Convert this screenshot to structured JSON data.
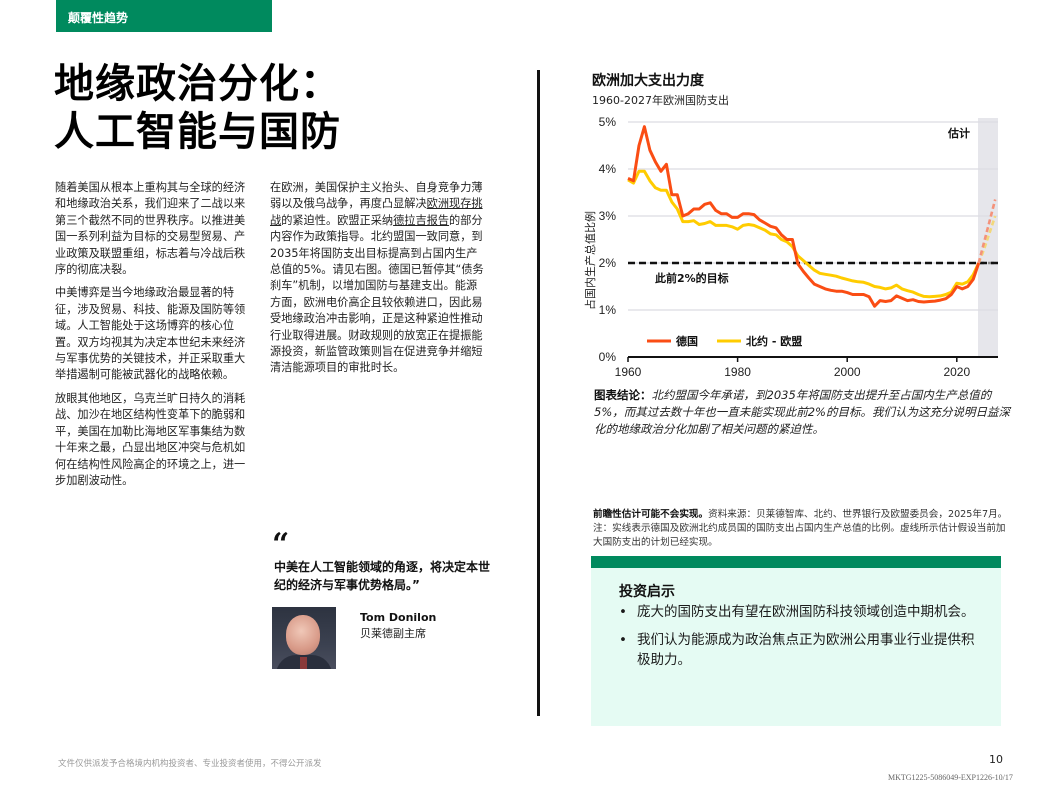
{
  "section_tag": "颠覆性趋势",
  "title": {
    "line1": "地缘政治分化：",
    "line2": "人工智能与国防"
  },
  "body": {
    "col1": [
      "随着美国从根本上重构其与全球的经济和地缘政治关系，我们迎来了二战以来第三个截然不同的世界秩序。以推进美国一系列利益为目标的交易型贸易、产业政策及联盟重组，标志着与冷战后秩序的彻底决裂。",
      "中美博弈是当今地缘政治最显著的特征，涉及贸易、科技、能源及国防等领域。人工智能处于这场博弈的核心位置。双方均视其为决定本世纪未来经济与军事优势的关键技术，并正采取重大举措遏制可能被武器化的战略依赖。",
      "放眼其他地区，乌克兰旷日持久的消耗战、加沙在地区结构性变革下的脆弱和平，美国在加勒比海地区军事集结为数十年来之最，凸显出地区冲突与危机如何在结构性风险高企的环境之上，进一步加剧波动性。"
    ],
    "col2": {
      "part1": "在欧洲，美国保护主义抬头、自身竞争力薄弱以及俄乌战争，再度凸显解决",
      "link1": "欧洲现存挑战",
      "part2": "的紧迫性。欧盟正采纳",
      "link2": "德拉吉报告",
      "part3": "的部分内容作为政策指导。北约盟国一致同意，到2035年将国防支出目标提高到占国内生产总值的5%。请见右图。德国已暂停其“债务刹车”机制，以增加国防与基建支出。能源方面，欧洲电价高企且较依赖进口，因此易受地缘政治冲击影响，正是这种紧迫性推动行业取得进展。财政规则的放宽正在提振能源投资，新监管政策则旨在促进竞争并缩短清洁能源项目的审批时长。"
    }
  },
  "quote": {
    "mark": "“",
    "text": "中美在人工智能领域的角逐，将决定本世纪的经济与军事优势格局。”",
    "speaker_name": "Tom Donilon",
    "speaker_role": "贝莱德副主席"
  },
  "chart": {
    "title": "欧洲加大支出力度",
    "subtitle": "1960-2027年欧洲国防支出",
    "estimate_label": "估计",
    "target_label": "此前2%的目标",
    "yaxis_label": "占国内生产总值比例",
    "legend": [
      {
        "label": "德国",
        "color": "#fa4d14"
      },
      {
        "label": "北约 - 欧盟",
        "color": "#ffcc00"
      }
    ],
    "conclusion_label": "图表结论：",
    "conclusion_text": "北约盟国今年承诺，到2035年将国防支出提升至占国内生产总值的5%，而其过去数十年也一直未能实现此前2%的目标。我们认为这充分说明日益深化的地缘政治分化加剧了相关问题的紧迫性。"
  },
  "chart_data": {
    "type": "line",
    "title": "欧洲加大支出力度",
    "subtitle": "1960-2027年欧洲国防支出",
    "xlabel": "",
    "ylabel": "占国内生产总值比例",
    "x_ticks": [
      "1960",
      "1980",
      "2000",
      "2020"
    ],
    "y_ticks": [
      "0%",
      "1%",
      "2%",
      "3%",
      "4%",
      "5%"
    ],
    "ylim": [
      0,
      5
    ],
    "xlim": [
      1960,
      2027
    ],
    "grid": true,
    "legend_position": "bottom-left inside",
    "reference_line": {
      "value": 2,
      "label": "此前2%的目标",
      "style": "dashed"
    },
    "estimate_region": {
      "from": 2024,
      "to": 2027,
      "label": "估计"
    },
    "series": [
      {
        "name": "德国",
        "color": "#fa4d14",
        "x": [
          1960,
          1961,
          1962,
          1963,
          1964,
          1965,
          1966,
          1967,
          1968,
          1969,
          1970,
          1971,
          1972,
          1973,
          1974,
          1975,
          1976,
          1977,
          1978,
          1979,
          1980,
          1981,
          1982,
          1983,
          1984,
          1985,
          1986,
          1987,
          1988,
          1989,
          1990,
          1991,
          1992,
          1993,
          1994,
          1995,
          1996,
          1997,
          1998,
          1999,
          2000,
          2001,
          2002,
          2003,
          2004,
          2005,
          2006,
          2007,
          2008,
          2009,
          2010,
          2011,
          2012,
          2013,
          2014,
          2015,
          2016,
          2017,
          2018,
          2019,
          2020,
          2021,
          2022,
          2023,
          2024
        ],
        "values": [
          3.8,
          3.75,
          4.5,
          4.9,
          4.4,
          4.15,
          3.95,
          4.1,
          3.45,
          3.45,
          3.0,
          3.05,
          3.15,
          3.15,
          3.25,
          3.28,
          3.12,
          3.05,
          3.05,
          2.97,
          2.97,
          3.05,
          3.05,
          3.03,
          2.92,
          2.85,
          2.78,
          2.75,
          2.6,
          2.5,
          2.5,
          1.98,
          1.82,
          1.68,
          1.55,
          1.5,
          1.45,
          1.42,
          1.4,
          1.4,
          1.37,
          1.33,
          1.33,
          1.33,
          1.28,
          1.08,
          1.2,
          1.18,
          1.2,
          1.3,
          1.25,
          1.2,
          1.22,
          1.18,
          1.17,
          1.18,
          1.19,
          1.21,
          1.24,
          1.33,
          1.5,
          1.45,
          1.5,
          1.65,
          2.0
        ],
        "estimate": {
          "x": [
            2024,
            2025,
            2026,
            2027
          ],
          "values": [
            2.0,
            2.45,
            2.9,
            3.35
          ]
        }
      },
      {
        "name": "北约 - 欧盟",
        "color": "#ffcc00",
        "x": [
          1960,
          1961,
          1962,
          1963,
          1964,
          1965,
          1966,
          1967,
          1968,
          1969,
          1970,
          1971,
          1972,
          1973,
          1974,
          1975,
          1976,
          1977,
          1978,
          1979,
          1980,
          1981,
          1982,
          1983,
          1984,
          1985,
          1986,
          1987,
          1988,
          1989,
          1990,
          1991,
          1992,
          1993,
          1994,
          1995,
          1996,
          1997,
          1998,
          1999,
          2000,
          2001,
          2002,
          2003,
          2004,
          2005,
          2006,
          2007,
          2008,
          2009,
          2010,
          2011,
          2012,
          2013,
          2014,
          2015,
          2016,
          2017,
          2018,
          2019,
          2020,
          2021,
          2022,
          2023,
          2024
        ],
        "values": [
          3.77,
          3.7,
          3.95,
          3.95,
          3.75,
          3.6,
          3.55,
          3.55,
          3.3,
          3.15,
          2.88,
          2.88,
          2.9,
          2.82,
          2.84,
          2.88,
          2.8,
          2.8,
          2.8,
          2.77,
          2.72,
          2.8,
          2.82,
          2.8,
          2.75,
          2.7,
          2.62,
          2.6,
          2.5,
          2.45,
          2.35,
          2.15,
          2.05,
          1.95,
          1.85,
          1.78,
          1.76,
          1.74,
          1.72,
          1.68,
          1.65,
          1.62,
          1.6,
          1.59,
          1.55,
          1.5,
          1.48,
          1.45,
          1.47,
          1.53,
          1.45,
          1.41,
          1.38,
          1.33,
          1.29,
          1.28,
          1.29,
          1.3,
          1.33,
          1.38,
          1.57,
          1.55,
          1.6,
          1.75,
          2.0
        ],
        "estimate": {
          "x": [
            2024,
            2025,
            2026,
            2027
          ],
          "values": [
            2.0,
            2.3,
            2.65,
            3.0
          ]
        }
      }
    ]
  },
  "source_note": {
    "bold": "前瞻性估计可能不会实现。",
    "text": "资料来源：贝莱德智库、北约、世界银行及欧盟委员会，2025年7月。注：实线表示德国及欧洲北约成员国的国防支出占国内生产总值的比例。虚线所示估计假设当前加大国防支出的计划已经实现。"
  },
  "investment": {
    "title": "投资启示",
    "bullet": "•",
    "items": [
      "庞大的国防支出有望在欧洲国防科技领域创造中期机会。",
      "我们认为能源成为政治焦点正为欧洲公用事业行业提供积极助力。"
    ]
  },
  "footer": {
    "disclaimer": "文件仅供派发予合格境内机构投资者、专业投资者使用，不得公开派发",
    "page_number": "10",
    "doc_code": "MKTG1225-5086049-EXP1226-10/17"
  },
  "colors": {
    "brand_green": "#008a5e",
    "germany": "#fa4d14",
    "nato_eu": "#ffcc00",
    "invest_bg": "#e5fbf3",
    "estimate_band": "#e6e6eb"
  }
}
